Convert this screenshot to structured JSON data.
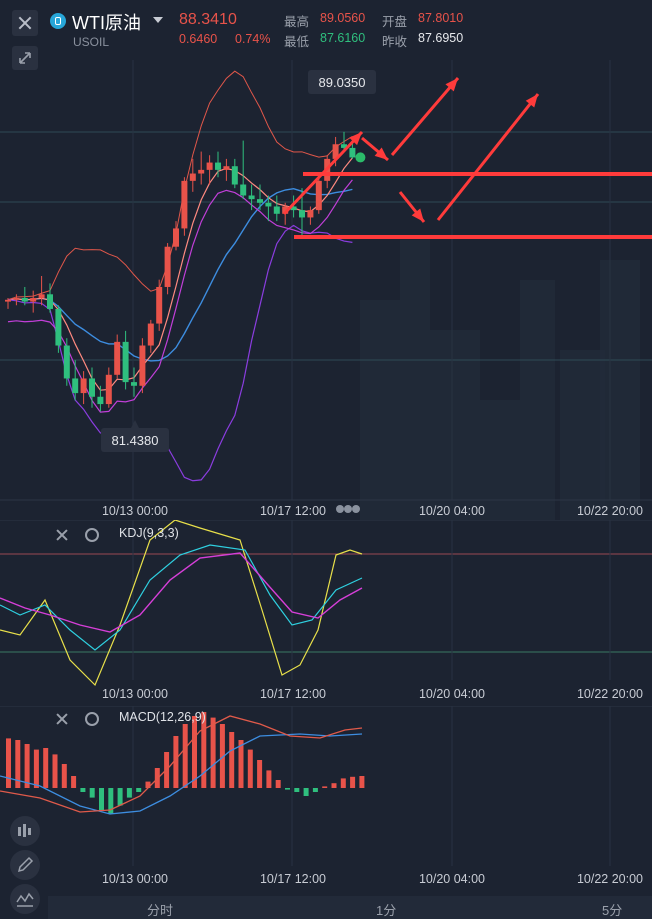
{
  "header": {
    "title": "WTI原油",
    "symbol_code": "USOIL",
    "last_price": "88.3410",
    "change": "0.6460",
    "change_pct": "0.74%",
    "high_label": "最高",
    "high_value": "89.0560",
    "open_label": "开盘",
    "open_value": "87.8010",
    "low_label": "最低",
    "low_value": "87.6160",
    "prev_close_label": "昨收",
    "prev_close_value": "87.6950"
  },
  "main_chart": {
    "type": "candlestick",
    "max_label": "89.0350",
    "min_label": "81.4380",
    "x_ticks": [
      "10/13 00:00",
      "10/17 12:00",
      "10/20 04:00",
      "10/22 20:00"
    ],
    "colors": {
      "up": "#e8534a",
      "down": "#2fbf7e",
      "ma_pink": "#ff8a80",
      "boll_blue": "#3d8de0",
      "boll_purple": "#b84ce0",
      "annotation": "#ff3b3b"
    }
  },
  "kdj": {
    "title": "KDJ(9,3,3)",
    "x_ticks": [
      "10/13 00:00",
      "10/17 12:00",
      "10/20 04:00",
      "10/22 20:00"
    ]
  },
  "macd": {
    "title": "MACD(12,26,9)",
    "x_ticks": [
      "10/13 00:00",
      "10/17 12:00",
      "10/20 04:00",
      "10/22 20:00"
    ]
  },
  "timeframes": [
    "分时",
    "1分",
    "5分"
  ],
  "chart_data": [
    {
      "type": "candlestick",
      "series": [
        {
          "name": "",
          "values": [
            [
              84.4,
              84.5,
              84.2,
              84.45
            ],
            [
              84.45,
              84.6,
              84.3,
              84.5
            ],
            [
              84.5,
              84.8,
              84.3,
              84.4
            ],
            [
              84.4,
              84.7,
              84.1,
              84.5
            ],
            [
              84.5,
              85.1,
              84.3,
              84.6
            ],
            [
              84.6,
              84.9,
              84.1,
              84.2
            ],
            [
              84.2,
              84.3,
              83.0,
              83.2
            ],
            [
              83.2,
              83.4,
              82.1,
              82.3
            ],
            [
              82.3,
              82.8,
              81.7,
              81.9
            ],
            [
              81.9,
              82.5,
              81.6,
              82.3
            ],
            [
              82.3,
              82.6,
              81.5,
              81.8
            ],
            [
              81.8,
              82.1,
              81.4,
              81.6
            ],
            [
              81.6,
              82.6,
              81.5,
              82.4
            ],
            [
              82.4,
              83.5,
              82.3,
              83.3
            ],
            [
              83.3,
              83.6,
              82.0,
              82.2
            ],
            [
              82.2,
              82.6,
              81.8,
              82.1
            ],
            [
              82.1,
              83.4,
              81.9,
              83.2
            ],
            [
              83.2,
              83.9,
              83.0,
              83.8
            ],
            [
              83.8,
              85.0,
              83.6,
              84.8
            ],
            [
              84.8,
              86.0,
              84.6,
              85.9
            ],
            [
              85.9,
              86.6,
              85.8,
              86.4
            ],
            [
              86.4,
              87.8,
              86.2,
              87.7
            ],
            [
              87.7,
              88.3,
              87.4,
              87.9
            ],
            [
              87.9,
              88.5,
              87.6,
              88.0
            ],
            [
              88.0,
              88.4,
              87.6,
              88.2
            ],
            [
              88.2,
              88.5,
              87.8,
              88.0
            ],
            [
              88.0,
              88.3,
              87.7,
              88.1
            ],
            [
              88.1,
              88.3,
              87.5,
              87.6
            ],
            [
              87.6,
              88.8,
              87.2,
              87.3
            ],
            [
              87.3,
              87.6,
              86.9,
              87.2
            ],
            [
              87.2,
              87.6,
              86.9,
              87.1
            ],
            [
              87.1,
              87.3,
              86.6,
              87.0
            ],
            [
              87.0,
              87.3,
              86.6,
              86.8
            ],
            [
              86.8,
              87.1,
              86.5,
              87.0
            ],
            [
              87.0,
              87.3,
              86.7,
              86.9
            ],
            [
              86.9,
              87.5,
              86.2,
              86.7
            ],
            [
              86.7,
              87.0,
              86.5,
              86.9
            ],
            [
              86.9,
              87.8,
              86.8,
              87.7
            ],
            [
              87.7,
              88.4,
              87.5,
              88.3
            ],
            [
              88.3,
              88.9,
              88.1,
              88.7
            ],
            [
              88.7,
              89.04,
              88.5,
              88.6
            ],
            [
              88.6,
              88.8,
              88.3,
              88.34
            ]
          ]
        }
      ]
    },
    {
      "type": "line",
      "title": "KDJ(9,3,3)",
      "series": [
        {
          "name": "K",
          "values": []
        },
        {
          "name": "D",
          "values": []
        },
        {
          "name": "J",
          "values": []
        }
      ]
    },
    {
      "type": "bar",
      "title": "MACD(12,26,9)",
      "series": [
        {
          "name": "MACD",
          "values": [
            0.62,
            0.6,
            0.55,
            0.48,
            0.5,
            0.42,
            0.3,
            0.15,
            -0.05,
            -0.12,
            -0.28,
            -0.32,
            -0.22,
            -0.12,
            -0.05,
            0.08,
            0.25,
            0.45,
            0.65,
            0.8,
            0.9,
            0.95,
            0.88,
            0.8,
            0.7,
            0.6,
            0.48,
            0.35,
            0.22,
            0.1,
            -0.02,
            -0.05,
            -0.1,
            -0.05,
            0.02,
            0.06,
            0.12,
            0.14,
            0.15
          ]
        }
      ]
    }
  ]
}
